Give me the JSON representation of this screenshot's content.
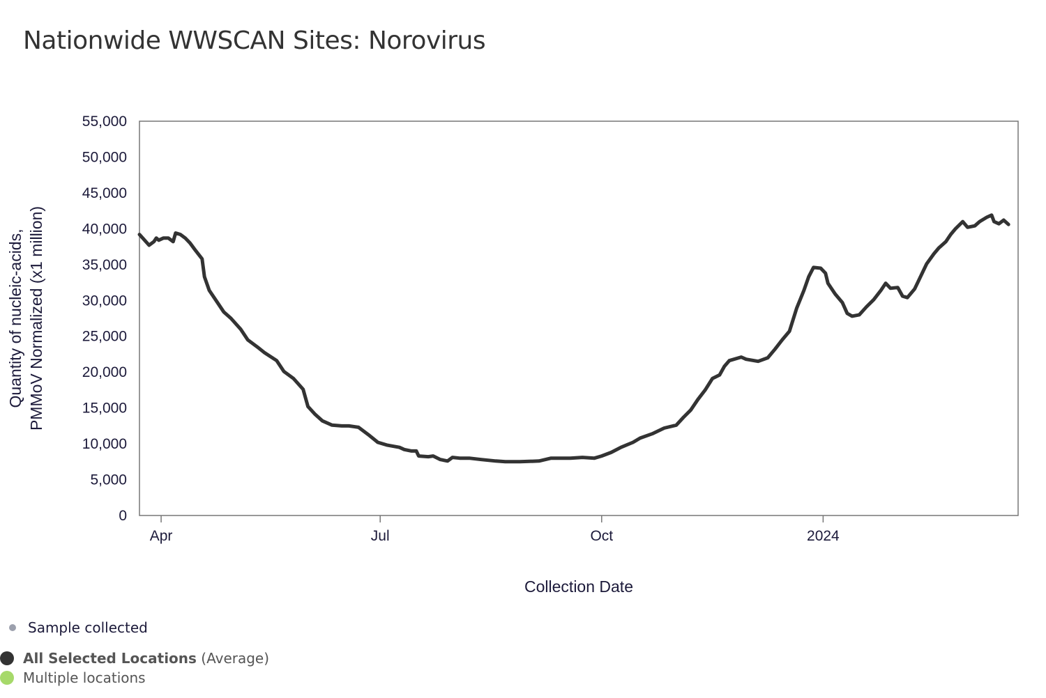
{
  "chart_data": {
    "type": "line",
    "title": "Nationwide WWSCAN Sites: Norovirus",
    "xlabel": "Collection Date",
    "ylabel": [
      "Quantity of nucleic-acids,",
      "PMMoV Normalized (x1 million)"
    ],
    "x_unit": "days since 2023-04-01",
    "xlim": [
      -9,
      356
    ],
    "ylim": [
      0,
      55000
    ],
    "yticks": [
      0,
      5000,
      10000,
      15000,
      20000,
      25000,
      30000,
      35000,
      40000,
      45000,
      50000,
      55000
    ],
    "ytick_labels": [
      "0",
      "5,000",
      "10,000",
      "15,000",
      "20,000",
      "25,000",
      "30,000",
      "35,000",
      "40,000",
      "45,000",
      "50,000",
      "55,000"
    ],
    "xticks": [
      {
        "x": 0,
        "label": "Apr"
      },
      {
        "x": 91,
        "label": "Jul"
      },
      {
        "x": 183,
        "label": "Oct"
      },
      {
        "x": 275,
        "label": "2024"
      }
    ],
    "grid": false,
    "series": [
      {
        "name": "All Selected Locations (Average)",
        "color": "#333333",
        "points": [
          [
            -9,
            39200
          ],
          [
            -5,
            37700
          ],
          [
            -3,
            38200
          ],
          [
            -2,
            38700
          ],
          [
            -1,
            38400
          ],
          [
            1,
            38700
          ],
          [
            3,
            38700
          ],
          [
            5,
            38200
          ],
          [
            6,
            39400
          ],
          [
            8,
            39200
          ],
          [
            10,
            38700
          ],
          [
            12,
            38000
          ],
          [
            14,
            37100
          ],
          [
            17,
            35800
          ],
          [
            18,
            33300
          ],
          [
            20,
            31400
          ],
          [
            23,
            29900
          ],
          [
            26,
            28400
          ],
          [
            29,
            27500
          ],
          [
            33,
            26000
          ],
          [
            36,
            24500
          ],
          [
            40,
            23500
          ],
          [
            43,
            22700
          ],
          [
            48,
            21600
          ],
          [
            51,
            20100
          ],
          [
            55,
            19100
          ],
          [
            59,
            17600
          ],
          [
            61,
            15200
          ],
          [
            64,
            14100
          ],
          [
            67,
            13200
          ],
          [
            71,
            12600
          ],
          [
            75,
            12500
          ],
          [
            78,
            12500
          ],
          [
            82,
            12300
          ],
          [
            86,
            11300
          ],
          [
            90,
            10200
          ],
          [
            94,
            9800
          ],
          [
            99,
            9500
          ],
          [
            101,
            9200
          ],
          [
            104,
            9000
          ],
          [
            106,
            9000
          ],
          [
            107,
            8300
          ],
          [
            111,
            8200
          ],
          [
            113,
            8300
          ],
          [
            116,
            7800
          ],
          [
            119,
            7600
          ],
          [
            121,
            8100
          ],
          [
            124,
            8000
          ],
          [
            128,
            8000
          ],
          [
            133,
            7800
          ],
          [
            139,
            7600
          ],
          [
            143,
            7500
          ],
          [
            149,
            7500
          ],
          [
            157,
            7600
          ],
          [
            162,
            8000
          ],
          [
            170,
            8000
          ],
          [
            175,
            8100
          ],
          [
            180,
            8000
          ],
          [
            183,
            8300
          ],
          [
            187,
            8800
          ],
          [
            191,
            9500
          ],
          [
            196,
            10200
          ],
          [
            199,
            10800
          ],
          [
            204,
            11400
          ],
          [
            209,
            12200
          ],
          [
            214,
            12600
          ],
          [
            217,
            13700
          ],
          [
            220,
            14700
          ],
          [
            223,
            16200
          ],
          [
            226,
            17500
          ],
          [
            229,
            19100
          ],
          [
            232,
            19600
          ],
          [
            234,
            20800
          ],
          [
            236,
            21600
          ],
          [
            241,
            22100
          ],
          [
            243,
            21800
          ],
          [
            248,
            21500
          ],
          [
            252,
            22000
          ],
          [
            255,
            23200
          ],
          [
            258,
            24500
          ],
          [
            261,
            25700
          ],
          [
            264,
            28900
          ],
          [
            267,
            31400
          ],
          [
            269,
            33300
          ],
          [
            271,
            34600
          ],
          [
            274,
            34500
          ],
          [
            276,
            33800
          ],
          [
            277,
            32400
          ],
          [
            280,
            30900
          ],
          [
            283,
            29700
          ],
          [
            285,
            28200
          ],
          [
            287,
            27800
          ],
          [
            290,
            28000
          ],
          [
            293,
            29100
          ],
          [
            296,
            30100
          ],
          [
            299,
            31400
          ],
          [
            301,
            32400
          ],
          [
            303,
            31700
          ],
          [
            306,
            31800
          ],
          [
            308,
            30600
          ],
          [
            310,
            30400
          ],
          [
            313,
            31600
          ],
          [
            315,
            33000
          ],
          [
            318,
            35100
          ],
          [
            321,
            36500
          ],
          [
            323,
            37300
          ],
          [
            326,
            38200
          ],
          [
            328,
            39200
          ],
          [
            330,
            40000
          ],
          [
            333,
            41000
          ],
          [
            335,
            40200
          ],
          [
            338,
            40400
          ],
          [
            340,
            41000
          ],
          [
            343,
            41600
          ],
          [
            345,
            41900
          ],
          [
            346,
            41000
          ],
          [
            348,
            40700
          ],
          [
            350,
            41200
          ],
          [
            352,
            40600
          ]
        ]
      }
    ],
    "legend": {
      "position": "bottom-left",
      "items": [
        {
          "label": "Sample collected",
          "color": "#9ca0ad"
        },
        {
          "label": "All Selected Locations",
          "suffix": "(Average)",
          "color": "#333333"
        },
        {
          "label": "Multiple locations",
          "color": "#a6d96a"
        }
      ]
    }
  }
}
